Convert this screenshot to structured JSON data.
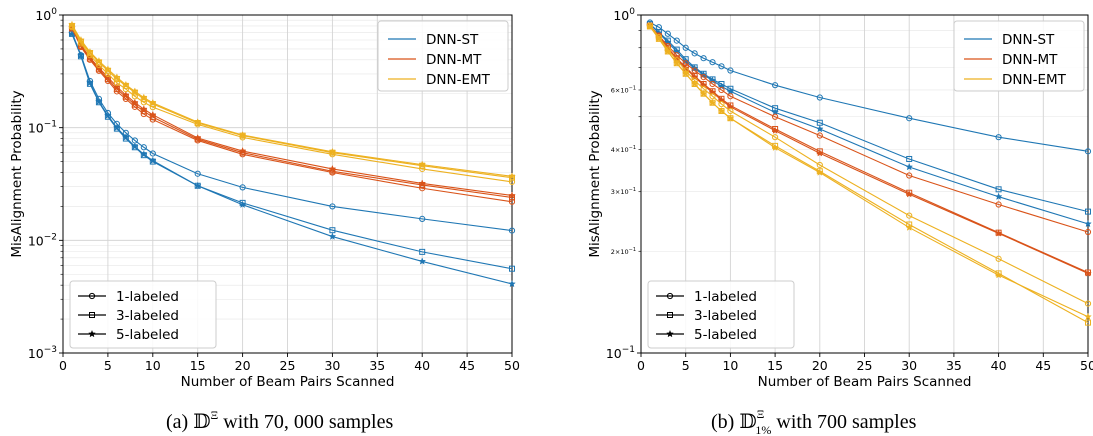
{
  "captions": {
    "a": "(a) 𝔻^Ξ with 70,000 samples",
    "b": "(b) 𝔻^Ξ_1% with 700 samples"
  },
  "chart_data": [
    {
      "type": "line",
      "xlabel": "Number of Beam Pairs Scanned",
      "ylabel": "MisAlignment Probability",
      "yscale": "log",
      "xlim": [
        0,
        50
      ],
      "ylim": [
        0.001,
        1.0
      ],
      "xticks": [
        0,
        5,
        10,
        15,
        20,
        25,
        30,
        35,
        40,
        45,
        50
      ],
      "yticks": [
        0.001,
        0.01,
        0.1,
        1.0
      ],
      "ytick_labels": [
        "10⁻³",
        "10⁻²",
        "10⁻¹",
        "10⁰"
      ],
      "grid": true,
      "legend_models": {
        "position": "top-right",
        "entries": [
          "DNN-ST",
          "DNN-MT",
          "DNN-EMT"
        ]
      },
      "legend_labels": {
        "position": "bottom-left",
        "entries": [
          {
            "label": "1-labeled",
            "marker": "circle"
          },
          {
            "label": "3-labeled",
            "marker": "square"
          },
          {
            "label": "5-labeled",
            "marker": "star"
          }
        ]
      },
      "x": [
        1,
        2,
        3,
        4,
        5,
        6,
        7,
        8,
        9,
        10,
        15,
        20,
        30,
        40,
        50
      ],
      "series": [
        {
          "name": "DNN-ST",
          "marker": "circle",
          "color": "#1f77b4",
          "values": [
            0.7,
            0.44,
            0.26,
            0.18,
            0.135,
            0.108,
            0.09,
            0.077,
            0.067,
            0.059,
            0.039,
            0.0295,
            0.02,
            0.0155,
            0.0122
          ]
        },
        {
          "name": "DNN-ST",
          "marker": "square",
          "color": "#1f77b4",
          "values": [
            0.68,
            0.43,
            0.245,
            0.168,
            0.125,
            0.098,
            0.08,
            0.067,
            0.057,
            0.05,
            0.0305,
            0.0215,
            0.0123,
            0.0079,
            0.0056
          ]
        },
        {
          "name": "DNN-ST",
          "marker": "star",
          "color": "#1f77b4",
          "values": [
            0.68,
            0.44,
            0.25,
            0.17,
            0.128,
            0.1,
            0.082,
            0.068,
            0.058,
            0.051,
            0.0305,
            0.0207,
            0.0108,
            0.0065,
            0.0041
          ]
        },
        {
          "name": "DNN-MT",
          "marker": "circle",
          "color": "#d95319",
          "values": [
            0.76,
            0.52,
            0.4,
            0.32,
            0.26,
            0.21,
            0.18,
            0.153,
            0.132,
            0.118,
            0.077,
            0.058,
            0.04,
            0.029,
            0.022
          ]
        },
        {
          "name": "DNN-MT",
          "marker": "square",
          "color": "#d95319",
          "values": [
            0.76,
            0.53,
            0.41,
            0.33,
            0.27,
            0.22,
            0.188,
            0.16,
            0.14,
            0.124,
            0.079,
            0.06,
            0.041,
            0.031,
            0.024
          ]
        },
        {
          "name": "DNN-MT",
          "marker": "star",
          "color": "#d95319",
          "values": [
            0.77,
            0.54,
            0.42,
            0.34,
            0.28,
            0.23,
            0.195,
            0.167,
            0.146,
            0.13,
            0.081,
            0.062,
            0.043,
            0.032,
            0.025
          ]
        },
        {
          "name": "DNN-EMT",
          "marker": "circle",
          "color": "#edb120",
          "values": [
            0.78,
            0.56,
            0.44,
            0.36,
            0.3,
            0.25,
            0.22,
            0.19,
            0.168,
            0.152,
            0.107,
            0.082,
            0.058,
            0.043,
            0.033
          ]
        },
        {
          "name": "DNN-EMT",
          "marker": "square",
          "color": "#edb120",
          "values": [
            0.8,
            0.58,
            0.46,
            0.38,
            0.32,
            0.27,
            0.235,
            0.205,
            0.18,
            0.162,
            0.11,
            0.085,
            0.06,
            0.046,
            0.036
          ]
        },
        {
          "name": "DNN-EMT",
          "marker": "star",
          "color": "#edb120",
          "values": [
            0.82,
            0.6,
            0.47,
            0.39,
            0.33,
            0.28,
            0.24,
            0.21,
            0.185,
            0.166,
            0.112,
            0.086,
            0.061,
            0.047,
            0.037
          ]
        }
      ]
    },
    {
      "type": "line",
      "xlabel": "Number of Beam Pairs Scanned",
      "ylabel": "MisAlignment Probability",
      "yscale": "log",
      "xlim": [
        0,
        50
      ],
      "ylim": [
        0.1,
        1.0
      ],
      "xticks": [
        0,
        5,
        10,
        15,
        20,
        25,
        30,
        35,
        40,
        45,
        50
      ],
      "yticks": [
        0.1,
        0.2,
        0.3,
        0.4,
        0.6,
        1.0
      ],
      "ytick_labels": [
        "10⁻¹",
        "2×10⁻¹",
        "3×10⁻¹",
        "4×10⁻¹",
        "6×10⁻¹",
        "10⁰"
      ],
      "grid": true,
      "legend_models": {
        "position": "top-right",
        "entries": [
          "DNN-ST",
          "DNN-MT",
          "DNN-EMT"
        ]
      },
      "legend_labels": {
        "position": "bottom-left",
        "entries": [
          {
            "label": "1-labeled",
            "marker": "circle"
          },
          {
            "label": "3-labeled",
            "marker": "square"
          },
          {
            "label": "5-labeled",
            "marker": "star"
          }
        ]
      },
      "x": [
        1,
        2,
        3,
        4,
        5,
        6,
        7,
        8,
        9,
        10,
        15,
        20,
        30,
        40,
        50
      ],
      "series": [
        {
          "name": "DNN-ST",
          "marker": "circle",
          "color": "#1f77b4",
          "values": [
            0.95,
            0.92,
            0.88,
            0.84,
            0.8,
            0.77,
            0.745,
            0.725,
            0.705,
            0.685,
            0.62,
            0.57,
            0.495,
            0.435,
            0.395
          ]
        },
        {
          "name": "DNN-ST",
          "marker": "square",
          "color": "#1f77b4",
          "values": [
            0.94,
            0.89,
            0.84,
            0.79,
            0.74,
            0.7,
            0.67,
            0.645,
            0.625,
            0.605,
            0.53,
            0.48,
            0.375,
            0.305,
            0.262
          ]
        },
        {
          "name": "DNN-ST",
          "marker": "star",
          "color": "#1f77b4",
          "values": [
            0.94,
            0.885,
            0.83,
            0.78,
            0.73,
            0.695,
            0.665,
            0.64,
            0.615,
            0.595,
            0.515,
            0.46,
            0.355,
            0.29,
            0.241
          ]
        },
        {
          "name": "DNN-MT",
          "marker": "circle",
          "color": "#d95319",
          "values": [
            0.93,
            0.87,
            0.81,
            0.76,
            0.72,
            0.685,
            0.655,
            0.625,
            0.6,
            0.575,
            0.5,
            0.44,
            0.335,
            0.275,
            0.228
          ]
        },
        {
          "name": "DNN-MT",
          "marker": "square",
          "color": "#d95319",
          "values": [
            0.93,
            0.865,
            0.8,
            0.745,
            0.7,
            0.66,
            0.625,
            0.595,
            0.565,
            0.54,
            0.46,
            0.395,
            0.298,
            0.227,
            0.173
          ]
        },
        {
          "name": "DNN-MT",
          "marker": "star",
          "color": "#d95319",
          "values": [
            0.93,
            0.86,
            0.795,
            0.74,
            0.695,
            0.655,
            0.62,
            0.59,
            0.56,
            0.535,
            0.455,
            0.39,
            0.295,
            0.226,
            0.172
          ]
        },
        {
          "name": "DNN-EMT",
          "marker": "circle",
          "color": "#edb120",
          "values": [
            0.93,
            0.86,
            0.79,
            0.735,
            0.685,
            0.64,
            0.605,
            0.575,
            0.545,
            0.52,
            0.435,
            0.36,
            0.255,
            0.19,
            0.14
          ]
        },
        {
          "name": "DNN-EMT",
          "marker": "square",
          "color": "#edb120",
          "values": [
            0.925,
            0.85,
            0.78,
            0.72,
            0.67,
            0.625,
            0.585,
            0.55,
            0.52,
            0.495,
            0.41,
            0.345,
            0.24,
            0.172,
            0.123
          ]
        },
        {
          "name": "DNN-EMT",
          "marker": "star",
          "color": "#edb120",
          "values": [
            0.925,
            0.85,
            0.78,
            0.72,
            0.67,
            0.625,
            0.585,
            0.55,
            0.52,
            0.495,
            0.405,
            0.342,
            0.235,
            0.17,
            0.128
          ]
        }
      ]
    }
  ]
}
